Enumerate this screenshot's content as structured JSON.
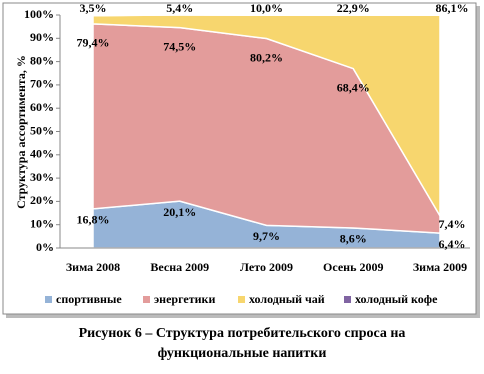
{
  "chart_data": {
    "type": "stacked_area",
    "y_label": "Структура ассортимента, %",
    "categories": [
      "Зима 2008",
      "Весна 2009",
      "Лето 2009",
      "Осень 2009",
      "Зима 2009"
    ],
    "series": [
      {
        "name": "спортивные",
        "color": "#95b3d7",
        "values": [
          16.8,
          20.1,
          9.7,
          8.6,
          6.4
        ],
        "value_labels": [
          "16,8%",
          "20,1%",
          "9,7%",
          "8,6%",
          "6,4%"
        ]
      },
      {
        "name": "энергетики",
        "color": "#e39c9b",
        "values": [
          79.4,
          74.5,
          80.2,
          68.4,
          7.4
        ],
        "value_labels": [
          "79,4%",
          "74,5%",
          "80,2%",
          "68,4%",
          "7,4%"
        ]
      },
      {
        "name": "холодный чай",
        "color": "#f7d66e",
        "values": [
          3.5,
          5.4,
          10.0,
          22.9,
          86.1
        ],
        "value_labels": [
          "3,5%",
          "5,4%",
          "10,0%",
          "22,9%",
          "86,1%"
        ]
      },
      {
        "name": "холодный кофе",
        "color": "#8064a2",
        "values": [
          0.3,
          0,
          0.1,
          0.1,
          0.1
        ]
      }
    ],
    "ylim": [
      0,
      100
    ],
    "yticks": [
      {
        "value": 0,
        "label": "0%"
      },
      {
        "value": 10,
        "label": "10%"
      },
      {
        "value": 20,
        "label": "20%"
      },
      {
        "value": 30,
        "label": "30%"
      },
      {
        "value": 40,
        "label": "40%"
      },
      {
        "value": 50,
        "label": "50%"
      },
      {
        "value": 60,
        "label": "60%"
      },
      {
        "value": 70,
        "label": "70%"
      },
      {
        "value": 80,
        "label": "80%"
      },
      {
        "value": 90,
        "label": "90%"
      },
      {
        "value": 100,
        "label": "100%"
      }
    ],
    "legend": "bottom"
  },
  "caption": [
    "Рисунок 6 – Структура потребительского спроса на",
    "функциональные напитки"
  ]
}
